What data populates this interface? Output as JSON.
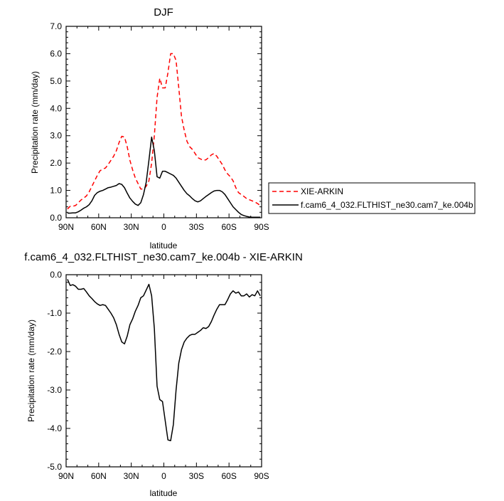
{
  "chart_data": [
    {
      "type": "line",
      "title": "DJF",
      "xlabel": "latitude",
      "ylabel": "Precipitation rate (mm/day)",
      "xlim": [
        90,
        -90
      ],
      "ylim": [
        0,
        7
      ],
      "x_ticks": [
        90,
        60,
        30,
        0,
        -30,
        -60,
        -90
      ],
      "x_tick_labels": [
        "90N",
        "60N",
        "30N",
        "0",
        "30S",
        "60S",
        "90S"
      ],
      "y_ticks": [
        0,
        1,
        2,
        3,
        4,
        5,
        6,
        7
      ],
      "y_tick_labels": [
        "0.0",
        "1.0",
        "2.0",
        "3.0",
        "4.0",
        "5.0",
        "6.0",
        "7.0"
      ],
      "legend_placement": "right",
      "series": [
        {
          "name": "XIE-ARKIN",
          "color": "#ff0000",
          "dash": "dashed",
          "x": [
            88.75,
            86.25,
            83.75,
            81.25,
            78.75,
            76.25,
            73.75,
            71.25,
            68.75,
            66.25,
            63.75,
            61.25,
            58.75,
            56.25,
            53.75,
            51.25,
            48.75,
            46.25,
            43.75,
            41.25,
            38.75,
            36.25,
            33.75,
            31.25,
            28.75,
            26.25,
            23.75,
            21.25,
            18.75,
            16.25,
            13.75,
            11.25,
            8.75,
            6.25,
            3.75,
            1.25,
            -1.25,
            -3.75,
            -6.25,
            -8.75,
            -11.25,
            -13.75,
            -16.25,
            -18.75,
            -21.25,
            -23.75,
            -26.25,
            -28.75,
            -31.25,
            -33.75,
            -36.25,
            -38.75,
            -41.25,
            -43.75,
            -46.25,
            -48.75,
            -51.25,
            -53.75,
            -56.25,
            -58.75,
            -61.25,
            -63.75,
            -66.25,
            -68.75,
            -71.25,
            -73.75,
            -76.25,
            -78.75,
            -81.25,
            -83.75,
            -86.25,
            -88.75
          ],
          "y": [
            0.32,
            0.42,
            0.42,
            0.45,
            0.55,
            0.65,
            0.72,
            0.8,
            0.95,
            1.15,
            1.35,
            1.55,
            1.72,
            1.78,
            1.82,
            1.95,
            2.1,
            2.25,
            2.45,
            2.75,
            2.98,
            2.95,
            2.6,
            2.1,
            1.75,
            1.45,
            1.25,
            1.05,
            1.05,
            1.15,
            1.35,
            2.0,
            3.0,
            4.4,
            5.1,
            4.75,
            4.75,
            5.3,
            6.0,
            6.0,
            5.75,
            4.75,
            3.7,
            3.2,
            2.8,
            2.6,
            2.5,
            2.35,
            2.2,
            2.15,
            2.1,
            2.12,
            2.2,
            2.3,
            2.35,
            2.25,
            2.1,
            1.95,
            1.75,
            1.6,
            1.5,
            1.35,
            1.1,
            0.92,
            0.85,
            0.78,
            0.7,
            0.66,
            0.62,
            0.58,
            0.52,
            0.45
          ]
        },
        {
          "name": "f.cam6_4_032.FLTHIST_ne30.cam7_ke.004b",
          "color": "#000000",
          "dash": "solid",
          "x": [
            88.75,
            86.25,
            83.75,
            81.25,
            78.75,
            76.25,
            73.75,
            71.25,
            68.75,
            66.25,
            63.75,
            61.25,
            58.75,
            56.25,
            53.75,
            51.25,
            48.75,
            46.25,
            43.75,
            41.25,
            38.75,
            36.25,
            33.75,
            31.25,
            28.75,
            26.25,
            23.75,
            21.25,
            18.75,
            16.25,
            13.75,
            11.25,
            8.75,
            6.25,
            3.75,
            1.25,
            -1.25,
            -3.75,
            -6.25,
            -8.75,
            -11.25,
            -13.75,
            -16.25,
            -18.75,
            -21.25,
            -23.75,
            -26.25,
            -28.75,
            -31.25,
            -33.75,
            -36.25,
            -38.75,
            -41.25,
            -43.75,
            -46.25,
            -48.75,
            -51.25,
            -53.75,
            -56.25,
            -58.75,
            -61.25,
            -63.75,
            -66.25,
            -68.75,
            -71.25,
            -73.75,
            -76.25,
            -78.75,
            -81.25,
            -83.75,
            -86.25,
            -88.75
          ],
          "y": [
            0.17,
            0.17,
            0.18,
            0.18,
            0.22,
            0.28,
            0.35,
            0.4,
            0.48,
            0.62,
            0.82,
            0.92,
            0.97,
            1.0,
            1.05,
            1.1,
            1.12,
            1.15,
            1.18,
            1.25,
            1.22,
            1.1,
            0.9,
            0.72,
            0.6,
            0.5,
            0.45,
            0.55,
            0.85,
            1.3,
            2.1,
            2.95,
            2.45,
            1.5,
            1.45,
            1.7,
            1.7,
            1.65,
            1.6,
            1.55,
            1.45,
            1.3,
            1.15,
            1.0,
            0.88,
            0.8,
            0.7,
            0.62,
            0.58,
            0.62,
            0.7,
            0.78,
            0.85,
            0.92,
            0.98,
            1.0,
            1.0,
            0.95,
            0.85,
            0.7,
            0.55,
            0.4,
            0.3,
            0.2,
            0.12,
            0.08,
            0.05,
            0.03,
            0.02,
            0.02,
            0.02,
            0.02
          ]
        }
      ]
    },
    {
      "type": "line",
      "title": "f.cam6_4_032.FLTHIST_ne30.cam7_ke.004b - XIE-ARKIN",
      "xlabel": "latitude",
      "ylabel": "Precipitation rate (mm/day)",
      "xlim": [
        90,
        -90
      ],
      "ylim": [
        -5,
        0
      ],
      "x_ticks": [
        90,
        60,
        30,
        0,
        -30,
        -60,
        -90
      ],
      "x_tick_labels": [
        "90N",
        "60N",
        "30N",
        "0",
        "30S",
        "60S",
        "90S"
      ],
      "y_ticks": [
        0,
        -1,
        -2,
        -3,
        -4,
        -5
      ],
      "y_tick_labels": [
        "0.0",
        "-1.0",
        "-2.0",
        "-3.0",
        "-4.0",
        "-5.0"
      ],
      "series": [
        {
          "color": "#000000",
          "dash": "solid",
          "x": [
            88.75,
            86.25,
            83.75,
            81.25,
            78.75,
            76.25,
            73.75,
            71.25,
            68.75,
            66.25,
            63.75,
            61.25,
            58.75,
            56.25,
            53.75,
            51.25,
            48.75,
            46.25,
            43.75,
            41.25,
            38.75,
            36.25,
            33.75,
            31.25,
            28.75,
            26.25,
            23.75,
            21.25,
            18.75,
            16.25,
            13.75,
            11.25,
            8.75,
            6.25,
            3.75,
            1.25,
            -1.25,
            -3.75,
            -6.25,
            -8.75,
            -11.25,
            -13.75,
            -16.25,
            -18.75,
            -21.25,
            -23.75,
            -26.25,
            -28.75,
            -31.25,
            -33.75,
            -36.25,
            -38.75,
            -41.25,
            -43.75,
            -46.25,
            -48.75,
            -51.25,
            -53.75,
            -56.25,
            -58.75,
            -61.25,
            -63.75,
            -66.25,
            -68.75,
            -71.25,
            -73.75,
            -76.25,
            -78.75,
            -81.25,
            -83.75,
            -86.25,
            -88.75
          ],
          "y": [
            -0.12,
            -0.28,
            -0.26,
            -0.3,
            -0.38,
            -0.38,
            -0.36,
            -0.45,
            -0.55,
            -0.62,
            -0.7,
            -0.76,
            -0.8,
            -0.78,
            -0.8,
            -0.9,
            -1.0,
            -1.12,
            -1.3,
            -1.55,
            -1.75,
            -1.8,
            -1.6,
            -1.3,
            -1.15,
            -0.95,
            -0.8,
            -0.6,
            -0.55,
            -0.4,
            -0.25,
            -0.55,
            -1.4,
            -2.9,
            -3.25,
            -3.3,
            -3.8,
            -4.3,
            -4.32,
            -3.9,
            -3.0,
            -2.3,
            -1.95,
            -1.75,
            -1.65,
            -1.58,
            -1.55,
            -1.55,
            -1.5,
            -1.45,
            -1.38,
            -1.4,
            -1.35,
            -1.22,
            -1.05,
            -0.9,
            -0.78,
            -0.78,
            -0.78,
            -0.65,
            -0.5,
            -0.42,
            -0.48,
            -0.45,
            -0.55,
            -0.55,
            -0.5,
            -0.58,
            -0.52,
            -0.55,
            -0.42,
            -0.55
          ]
        }
      ]
    }
  ]
}
